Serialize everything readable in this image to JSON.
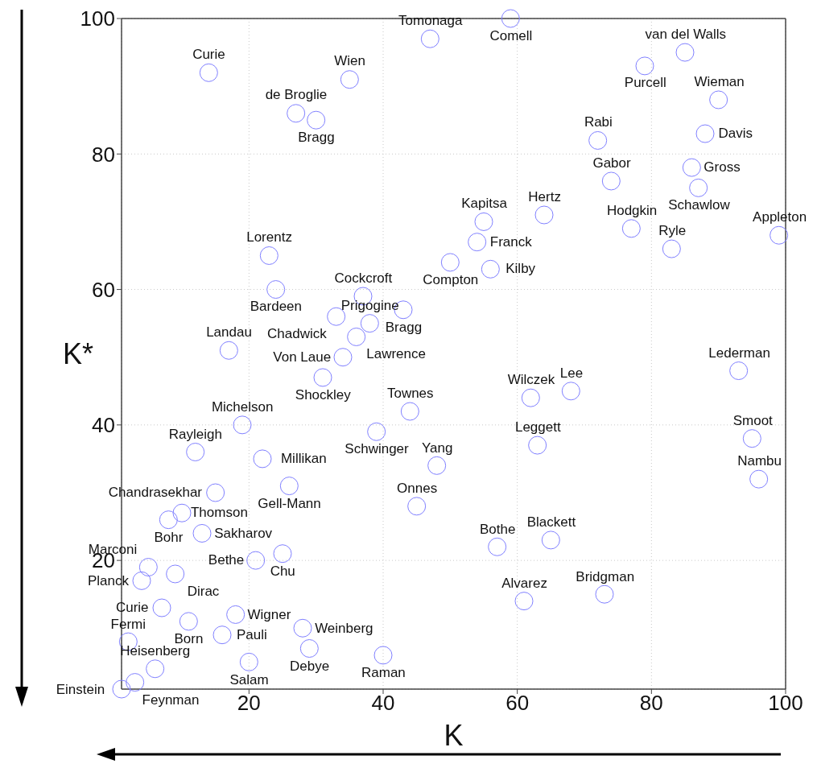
{
  "chart_data": {
    "type": "scatter",
    "xlabel": "K",
    "ylabel": "K*",
    "x": [
      14,
      35,
      27,
      30,
      47,
      59,
      85,
      79,
      90,
      88,
      72,
      86,
      87,
      74,
      55,
      64,
      77,
      99,
      54,
      50,
      56,
      83,
      93,
      62,
      68,
      63,
      95,
      23,
      24,
      37,
      43,
      33,
      38,
      36,
      17,
      34,
      31,
      44,
      19,
      39,
      12,
      22,
      48,
      26,
      15,
      45,
      10,
      8,
      13,
      25,
      21,
      5,
      9,
      4,
      7,
      11,
      18,
      16,
      28,
      2,
      29,
      40,
      20,
      6,
      3,
      1,
      96,
      57,
      65,
      61,
      73
    ],
    "values": [
      92,
      91,
      86,
      85,
      97,
      100,
      95,
      93,
      88,
      83,
      82,
      78,
      75,
      76,
      70,
      71,
      69,
      68,
      67,
      64,
      63,
      66,
      48,
      44,
      45,
      37,
      38,
      65,
      60,
      59,
      57,
      56,
      55,
      53,
      51,
      50,
      47,
      42,
      40,
      39,
      36,
      35,
      34,
      31,
      30,
      28,
      27,
      26,
      24,
      21,
      20,
      19,
      18,
      17,
      13,
      11,
      12,
      9,
      10,
      8,
      7,
      6,
      5,
      4,
      2,
      1,
      32,
      22,
      23,
      14,
      15
    ],
    "value_labels": [
      "Curie",
      "Wien",
      "de Broglie",
      "Bragg",
      "Tomonaga",
      "Comell",
      "van del Walls",
      "Purcell",
      "Wieman",
      "Davis",
      "Rabi",
      "Gross",
      "Schawlow",
      "Gabor",
      "Kapitsa",
      "Hertz",
      "Hodgkin",
      "Appleton",
      "Franck",
      "Compton",
      "Kilby",
      "Ryle",
      "Lederman",
      "Wilczek",
      "Lee",
      "Leggett",
      "Smoot",
      "Lorentz",
      "Bardeen",
      "Cockcroft",
      "Bragg",
      "Chadwick",
      "Prigogine",
      "Lawrence",
      "Landau",
      "Von Laue",
      "Shockley",
      "Townes",
      "Michelson",
      "Schwinger",
      "Rayleigh",
      "Millikan",
      "Yang",
      "Gell-Mann",
      "Chandrasekhar",
      "Onnes",
      "Thomson",
      "Bohr",
      "Sakharov",
      "Chu",
      "Bethe",
      "Marconi",
      "Dirac",
      "Planck",
      "Curie",
      "Born",
      "Wigner",
      "Pauli",
      "Weinberg",
      "Fermi",
      "Debye",
      "Raman",
      "Salam",
      "Heisenberg",
      "Feynman",
      "Einstein",
      "Nambu",
      "Bothe",
      "Blackett",
      "Alvarez",
      "Bridgman"
    ],
    "color": "#8080ff",
    "marker": "circle",
    "xlim": [
      1,
      100
    ],
    "ylim": [
      1,
      100
    ],
    "xticks": [
      20,
      40,
      60,
      80,
      100
    ],
    "yticks": [
      20,
      40,
      60,
      80,
      100
    ],
    "grid": true
  }
}
